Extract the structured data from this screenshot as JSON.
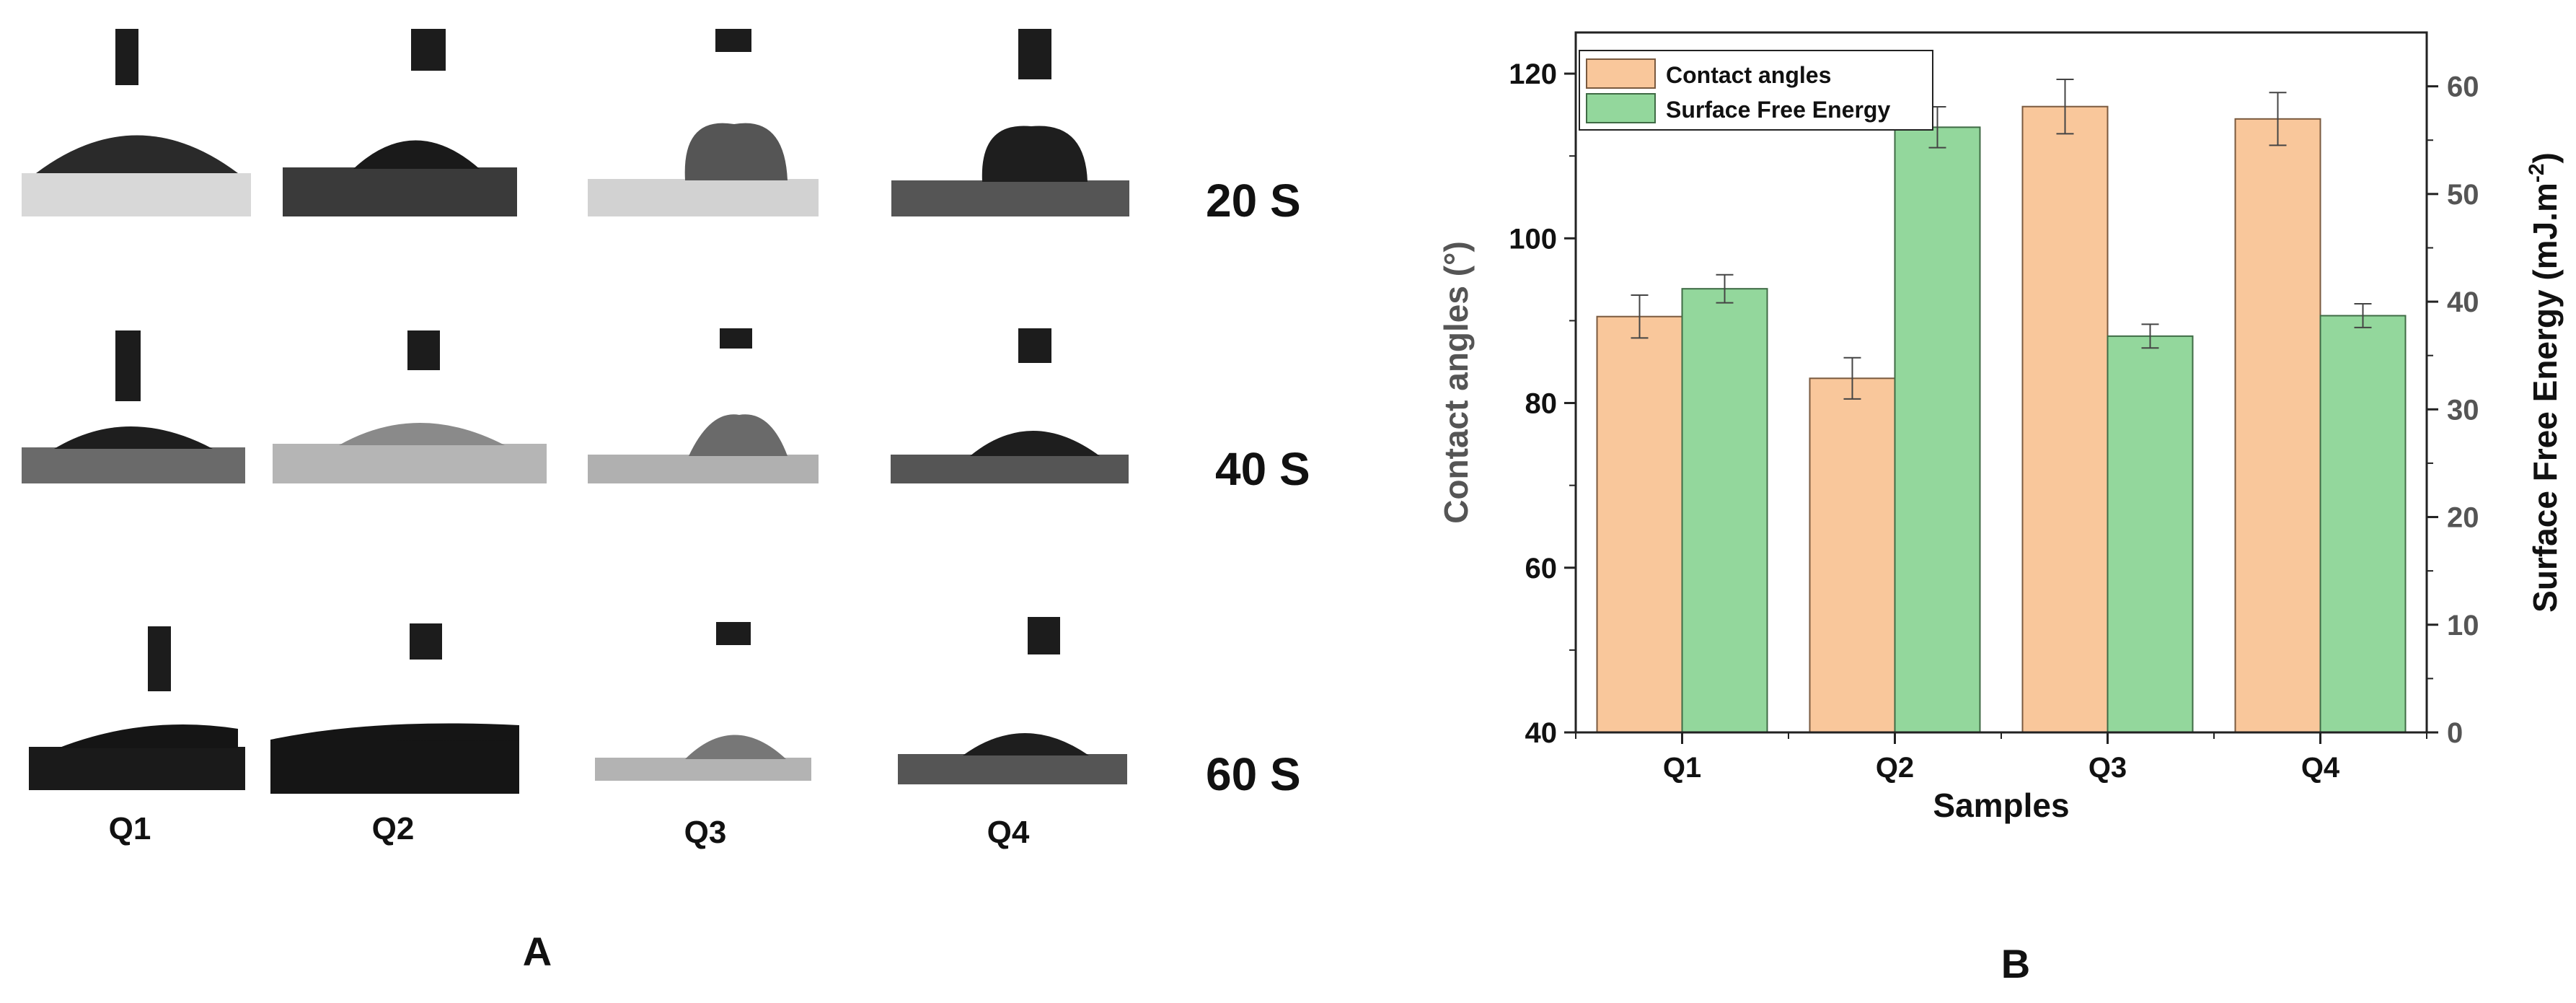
{
  "panel_a": {
    "label": "A",
    "time_labels": [
      "20 S",
      "40 S",
      "60 S"
    ],
    "sample_labels": [
      "Q1",
      "Q2",
      "Q3",
      "Q4"
    ]
  },
  "panel_b": {
    "label": "B"
  },
  "colors": {
    "contact_angle_fill": "#f9c79b",
    "contact_angle_stroke": "#7a5a3f",
    "surface_energy_fill": "#93d79c",
    "surface_energy_stroke": "#3f6b45",
    "axis": "#222222",
    "photo_background": "#cfcfcf",
    "photo_droplet": "#1c1c1c"
  },
  "chart_data": {
    "type": "bar",
    "title": "",
    "categories": [
      "Q1",
      "Q2",
      "Q3",
      "Q4"
    ],
    "xlabel": "Samples",
    "ylabel": "Contact angles (°)",
    "ylabel_right": "Surface Free Energy (mJ.m-2)",
    "ylim": [
      40,
      125
    ],
    "ylim_right": [
      0,
      65
    ],
    "yticks": [
      40,
      60,
      80,
      100,
      120
    ],
    "yticks_right": [
      0,
      10,
      20,
      30,
      40,
      50,
      60
    ],
    "legend_position": "top-left",
    "grid": false,
    "series": [
      {
        "name": "Contact angles",
        "axis": "left",
        "values": [
          90.5,
          83,
          116,
          114.5
        ],
        "errors": [
          2.6,
          2.5,
          3.3,
          3.2
        ]
      },
      {
        "name": "Surface Free Energy",
        "axis": "right",
        "values": [
          41.2,
          56.2,
          36.8,
          38.7
        ],
        "errors": [
          1.3,
          1.9,
          1.1,
          1.1
        ]
      }
    ]
  }
}
